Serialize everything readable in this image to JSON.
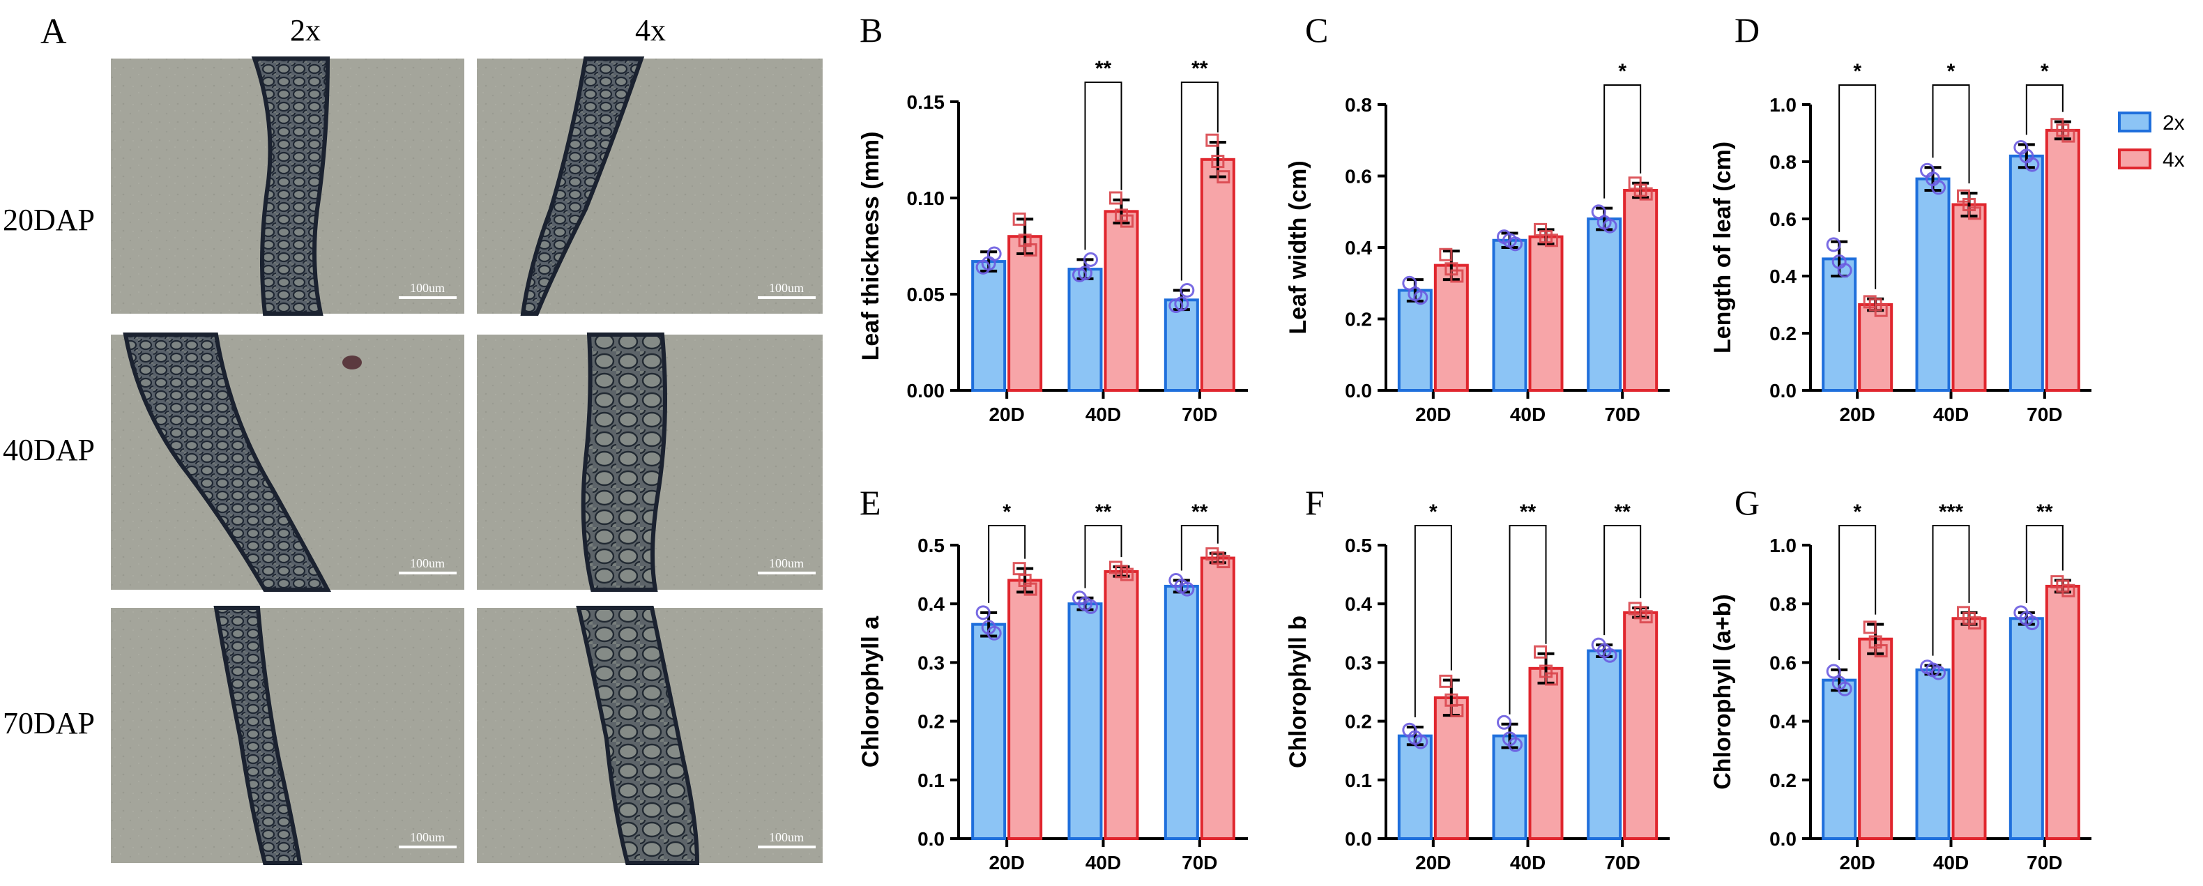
{
  "figure": {
    "panel_A": {
      "label": "A",
      "col_headers": [
        "2x",
        "4x"
      ],
      "row_labels": [
        "20DAP",
        "40DAP",
        "70DAP"
      ],
      "scale_bar_label": "100um"
    },
    "legend": {
      "entries": [
        "2x",
        "4x"
      ]
    },
    "colors": {
      "x2_fill": "#8cc4f5",
      "x2_stroke": "#1f6fdc",
      "x2_point": "#6a5be0",
      "x4_fill": "#f7a5a8",
      "x4_stroke": "#e0262e",
      "x4_point": "#d9464c",
      "micro_bg": "#a3a49a",
      "tissue_dark": "#2b3340"
    }
  },
  "chart_data": [
    {
      "panel": "B",
      "type": "bar",
      "ylabel": "Leaf  thickness (mm)",
      "categories": [
        "20D",
        "40D",
        "70D"
      ],
      "ylim": [
        0,
        0.15
      ],
      "yticks": [
        0,
        0.05,
        0.1,
        0.15
      ],
      "yticklabels": [
        "0.00",
        "0.05",
        "0.10",
        "0.15"
      ],
      "series": [
        {
          "name": "2x",
          "values": [
            0.067,
            0.063,
            0.047
          ],
          "errors": [
            0.005,
            0.005,
            0.005
          ],
          "points": [
            [
              0.064,
              0.071,
              0.066
            ],
            [
              0.06,
              0.068,
              0.061
            ],
            [
              0.044,
              0.052,
              0.045
            ]
          ]
        },
        {
          "name": "4x",
          "values": [
            0.08,
            0.093,
            0.12
          ],
          "errors": [
            0.009,
            0.006,
            0.009
          ],
          "points": [
            [
              0.089,
              0.073,
              0.078
            ],
            [
              0.1,
              0.088,
              0.091
            ],
            [
              0.13,
              0.111,
              0.119
            ]
          ]
        }
      ],
      "significance": [
        null,
        "**",
        "**"
      ]
    },
    {
      "panel": "C",
      "type": "bar",
      "ylabel": "Leaf width (cm)",
      "categories": [
        "20D",
        "40D",
        "70D"
      ],
      "ylim": [
        0,
        0.8
      ],
      "yticks": [
        0,
        0.2,
        0.4,
        0.6,
        0.8
      ],
      "yticklabels": [
        "0.0",
        "0.2",
        "0.4",
        "0.6",
        "0.8"
      ],
      "series": [
        {
          "name": "2x",
          "values": [
            0.28,
            0.42,
            0.48
          ],
          "errors": [
            0.03,
            0.02,
            0.03
          ],
          "points": [
            [
              0.3,
              0.26,
              0.27
            ],
            [
              0.43,
              0.41,
              0.42
            ],
            [
              0.5,
              0.46,
              0.47
            ]
          ]
        },
        {
          "name": "4x",
          "values": [
            0.35,
            0.43,
            0.56
          ],
          "errors": [
            0.04,
            0.02,
            0.02
          ],
          "points": [
            [
              0.38,
              0.32,
              0.34
            ],
            [
              0.45,
              0.42,
              0.43
            ],
            [
              0.58,
              0.55,
              0.56
            ]
          ]
        }
      ],
      "significance": [
        null,
        null,
        "*"
      ]
    },
    {
      "panel": "D",
      "type": "bar",
      "ylabel": "Length of leaf (cm)",
      "categories": [
        "20D",
        "40D",
        "70D"
      ],
      "ylim": [
        0,
        1.0
      ],
      "yticks": [
        0,
        0.2,
        0.4,
        0.6,
        0.8,
        1.0
      ],
      "yticklabels": [
        "0.0",
        "0.2",
        "0.4",
        "0.6",
        "0.8",
        "1.0"
      ],
      "series": [
        {
          "name": "2x",
          "values": [
            0.46,
            0.74,
            0.82
          ],
          "errors": [
            0.06,
            0.04,
            0.04
          ],
          "points": [
            [
              0.51,
              0.42,
              0.45
            ],
            [
              0.77,
              0.71,
              0.74
            ],
            [
              0.85,
              0.79,
              0.82
            ]
          ]
        },
        {
          "name": "4x",
          "values": [
            0.3,
            0.65,
            0.91
          ],
          "errors": [
            0.02,
            0.04,
            0.03
          ],
          "points": [
            [
              0.31,
              0.28,
              0.3
            ],
            [
              0.68,
              0.62,
              0.65
            ],
            [
              0.93,
              0.89,
              0.91
            ]
          ]
        }
      ],
      "significance": [
        "*",
        "*",
        "*"
      ]
    },
    {
      "panel": "E",
      "type": "bar",
      "ylabel": "Chlorophyll a",
      "categories": [
        "20D",
        "40D",
        "70D"
      ],
      "ylim": [
        0,
        0.5
      ],
      "yticks": [
        0,
        0.1,
        0.2,
        0.3,
        0.4,
        0.5
      ],
      "yticklabels": [
        "0.0",
        "0.1",
        "0.2",
        "0.3",
        "0.4",
        "0.5"
      ],
      "series": [
        {
          "name": "2x",
          "values": [
            0.365,
            0.4,
            0.43
          ],
          "errors": [
            0.02,
            0.01,
            0.01
          ],
          "points": [
            [
              0.385,
              0.35,
              0.36
            ],
            [
              0.41,
              0.395,
              0.4
            ],
            [
              0.44,
              0.425,
              0.43
            ]
          ]
        },
        {
          "name": "4x",
          "values": [
            0.44,
            0.455,
            0.478
          ],
          "errors": [
            0.02,
            0.008,
            0.008
          ],
          "points": [
            [
              0.46,
              0.425,
              0.44
            ],
            [
              0.462,
              0.45,
              0.455
            ],
            [
              0.485,
              0.472,
              0.478
            ]
          ]
        }
      ],
      "significance": [
        "*",
        "**",
        "**"
      ]
    },
    {
      "panel": "F",
      "type": "bar",
      "ylabel": "Chlorophyll b",
      "categories": [
        "20D",
        "40D",
        "70D"
      ],
      "ylim": [
        0,
        0.5
      ],
      "yticks": [
        0,
        0.1,
        0.2,
        0.3,
        0.4,
        0.5
      ],
      "yticklabels": [
        "0.0",
        "0.1",
        "0.2",
        "0.3",
        "0.4",
        "0.5"
      ],
      "series": [
        {
          "name": "2x",
          "values": [
            0.175,
            0.175,
            0.32
          ],
          "errors": [
            0.015,
            0.02,
            0.01
          ],
          "points": [
            [
              0.185,
              0.165,
              0.172
            ],
            [
              0.198,
              0.16,
              0.17
            ],
            [
              0.33,
              0.312,
              0.32
            ]
          ]
        },
        {
          "name": "4x",
          "values": [
            0.24,
            0.29,
            0.385
          ],
          "errors": [
            0.03,
            0.025,
            0.008
          ],
          "points": [
            [
              0.268,
              0.218,
              0.236
            ],
            [
              0.318,
              0.272,
              0.285
            ],
            [
              0.392,
              0.378,
              0.385
            ]
          ]
        }
      ],
      "significance": [
        "*",
        "**",
        "**"
      ]
    },
    {
      "panel": "G",
      "type": "bar",
      "ylabel": "Chlorophyll (a+b)",
      "categories": [
        "20D",
        "40D",
        "70D"
      ],
      "ylim": [
        0,
        1.0
      ],
      "yticks": [
        0,
        0.2,
        0.4,
        0.6,
        0.8,
        1.0
      ],
      "yticklabels": [
        "0.0",
        "0.2",
        "0.4",
        "0.6",
        "0.8",
        "1.0"
      ],
      "series": [
        {
          "name": "2x",
          "values": [
            0.54,
            0.575,
            0.75
          ],
          "errors": [
            0.035,
            0.015,
            0.02
          ],
          "points": [
            [
              0.57,
              0.51,
              0.53
            ],
            [
              0.585,
              0.565,
              0.575
            ],
            [
              0.77,
              0.735,
              0.75
            ]
          ]
        },
        {
          "name": "4x",
          "values": [
            0.68,
            0.75,
            0.86
          ],
          "errors": [
            0.05,
            0.02,
            0.02
          ],
          "points": [
            [
              0.72,
              0.64,
              0.67
            ],
            [
              0.77,
              0.735,
              0.75
            ],
            [
              0.875,
              0.845,
              0.86
            ]
          ]
        }
      ],
      "significance": [
        "*",
        "***",
        "**"
      ]
    }
  ]
}
